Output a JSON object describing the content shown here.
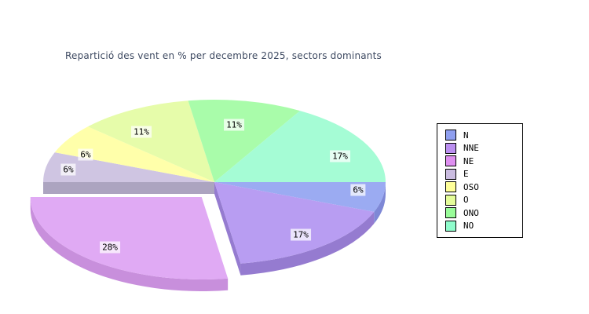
{
  "title": "Repartició des vent en % per decembre 2025, sectors dominants",
  "colors": {
    "background": "#ffffff",
    "title_text": "#3d4961",
    "label_text": "#000000",
    "label_background": "rgba(255,255,255,0.72)",
    "legend_border": "#000000",
    "legend_background": "#ffffff"
  },
  "chart_data": {
    "type": "pie",
    "title": "Repartició des vent en % per decembre 2025, sectors dominants",
    "unit": "%",
    "effect_3d": true,
    "start_angle_deg": 0,
    "direction": "clockwise",
    "legend_position": "right",
    "legend_entries": [
      "N",
      "NNE",
      "NE",
      "E",
      "OSO",
      "O",
      "ONO",
      "NO"
    ],
    "slices": [
      {
        "label": "N",
        "value": 6,
        "display": "6%",
        "color": "#9babf2",
        "side_color": "#7e88d6",
        "legend_color": "#8f9ff0",
        "exploded": false
      },
      {
        "label": "NNE",
        "value": 17,
        "display": "17%",
        "color": "#b89df2",
        "side_color": "#957bd0",
        "legend_color": "#bb8ff0",
        "exploded": false
      },
      {
        "label": "NE",
        "value": 28,
        "display": "28%",
        "color": "#e0aaf4",
        "side_color": "#c88fdc",
        "legend_color": "#de8ff0",
        "exploded": true
      },
      {
        "label": "E",
        "value": 6,
        "display": "6%",
        "color": "#cfc5e2",
        "side_color": "#aca4c0",
        "legend_color": "#cabce0",
        "exploded": false
      },
      {
        "label": "OSO",
        "value": 6,
        "display": "6%",
        "color": "#ffffaa",
        "side_color": "#d8d88a",
        "legend_color": "#ffff99",
        "exploded": false
      },
      {
        "label": "O",
        "value": 11,
        "display": "11%",
        "color": "#e6fcaa",
        "side_color": "#c2d88a",
        "legend_color": "#e4fc99",
        "exploded": false
      },
      {
        "label": "ONO",
        "value": 11,
        "display": "11%",
        "color": "#a9fcaa",
        "side_color": "#8ad88a",
        "legend_color": "#99fc99",
        "exploded": false
      },
      {
        "label": "NO",
        "value": 17,
        "display": "17%",
        "color": "#a5fcd5",
        "side_color": "#86d8b2",
        "legend_color": "#8ffccc",
        "exploded": false
      }
    ]
  }
}
